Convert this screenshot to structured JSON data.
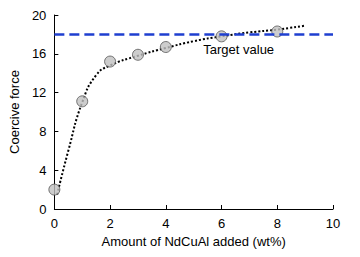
{
  "chart_data": {
    "type": "scatter",
    "x_label": "Amount of NdCuAl added (wt%)",
    "y_label": "Coercive force",
    "x": [
      0,
      1,
      2,
      3,
      4,
      6,
      8
    ],
    "values": [
      2,
      11.1,
      15.2,
      15.9,
      16.7,
      17.8,
      18.3
    ],
    "color": "#c0c0c0",
    "marker": "circle",
    "trend": {
      "x": [
        0.1,
        0.5,
        1,
        1.5,
        2,
        3,
        4,
        5,
        6,
        7,
        8,
        9
      ],
      "values": [
        1.5,
        6,
        11,
        13.8,
        14.8,
        15.8,
        16.6,
        17.3,
        17.8,
        18.2,
        18.5,
        18.9
      ],
      "color": "#000000",
      "line_style": "dotted"
    },
    "target": {
      "value": 18,
      "label": "Target value",
      "color": "#1f3fd0",
      "line_style": "dashed"
    },
    "xlim": [
      0,
      10
    ],
    "xticks": [
      0,
      2,
      4,
      6,
      8,
      10
    ],
    "ylim": [
      0,
      20
    ],
    "yticks": [
      0,
      4,
      8,
      12,
      16,
      20
    ],
    "grid": false
  }
}
